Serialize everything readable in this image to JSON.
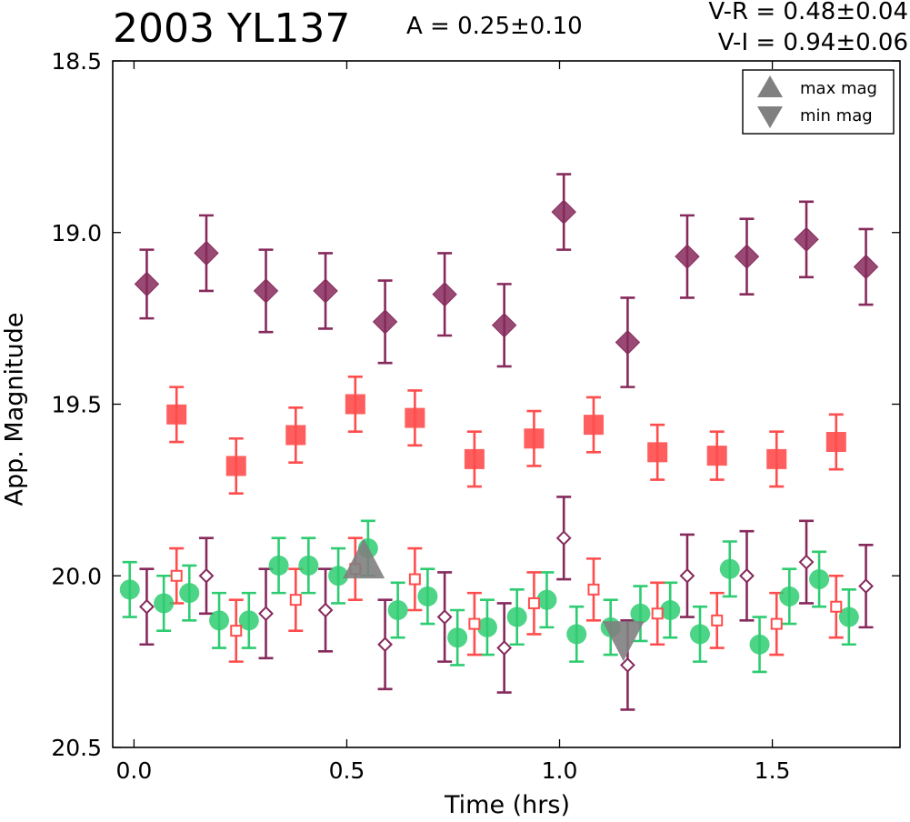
{
  "header": {
    "title": "2003 YL137",
    "amplitude": "A  = 0.25±0.10",
    "color_vr": "V-R = 0.48±0.04",
    "color_vi": "V-I  = 0.94±0.06"
  },
  "chart_data": {
    "type": "scatter",
    "xlabel": "Time (hrs)",
    "ylabel": "App. Magnitude",
    "xlim": [
      -0.05,
      1.8
    ],
    "ylim": [
      20.5,
      18.5
    ],
    "y_inverted": true,
    "xticks": [
      0.0,
      0.5,
      1.0,
      1.5
    ],
    "xtick_labels": [
      "0.0",
      "0.5",
      "1.0",
      "1.5"
    ],
    "yticks": [
      18.5,
      19.0,
      19.5,
      20.0,
      20.5
    ],
    "ytick_labels": [
      "18.5",
      "19.0",
      "19.5",
      "20.0",
      "20.5"
    ],
    "grid": false,
    "legend_position": "top-right",
    "legend": [
      {
        "label": "max mag",
        "marker": "triangle-up",
        "color": "#808080"
      },
      {
        "label": "min mag",
        "marker": "triangle-down",
        "color": "#808080"
      }
    ],
    "series": [
      {
        "marker": "diamond-filled",
        "color": "#862a5c",
        "x": [
          0.03,
          0.17,
          0.31,
          0.45,
          0.59,
          0.73,
          0.87,
          1.01,
          1.16,
          1.3,
          1.44,
          1.58,
          1.72
        ],
        "y": [
          19.15,
          19.06,
          19.17,
          19.17,
          19.26,
          19.18,
          19.27,
          18.94,
          19.32,
          19.07,
          19.07,
          19.02,
          19.1
        ],
        "err": [
          0.1,
          0.11,
          0.12,
          0.11,
          0.12,
          0.12,
          0.12,
          0.11,
          0.13,
          0.12,
          0.11,
          0.11,
          0.11
        ]
      },
      {
        "marker": "square-filled",
        "color": "#ff4d4d",
        "x": [
          0.1,
          0.24,
          0.38,
          0.52,
          0.66,
          0.8,
          0.94,
          1.08,
          1.23,
          1.37,
          1.51,
          1.65
        ],
        "y": [
          19.53,
          19.68,
          19.59,
          19.5,
          19.54,
          19.66,
          19.6,
          19.56,
          19.64,
          19.65,
          19.66,
          19.61
        ],
        "err": [
          0.08,
          0.08,
          0.08,
          0.08,
          0.08,
          0.08,
          0.08,
          0.08,
          0.08,
          0.07,
          0.08,
          0.08
        ]
      },
      {
        "marker": "circle-filled",
        "color": "#2ecc71",
        "x": [
          -0.01,
          0.07,
          0.13,
          0.2,
          0.27,
          0.34,
          0.41,
          0.48,
          0.55,
          0.62,
          0.69,
          0.76,
          0.83,
          0.9,
          0.97,
          1.04,
          1.12,
          1.19,
          1.26,
          1.33,
          1.4,
          1.47,
          1.54,
          1.61,
          1.68
        ],
        "y": [
          20.04,
          20.08,
          20.05,
          20.13,
          20.13,
          19.97,
          19.97,
          20.0,
          19.92,
          20.1,
          20.06,
          20.18,
          20.15,
          20.12,
          20.07,
          20.17,
          20.15,
          20.11,
          20.1,
          20.17,
          19.98,
          20.2,
          20.06,
          20.01,
          20.12
        ],
        "err": [
          0.08,
          0.08,
          0.08,
          0.08,
          0.08,
          0.08,
          0.08,
          0.08,
          0.08,
          0.08,
          0.08,
          0.08,
          0.08,
          0.08,
          0.08,
          0.08,
          0.08,
          0.08,
          0.08,
          0.08,
          0.08,
          0.08,
          0.08,
          0.08,
          0.08
        ]
      },
      {
        "marker": "square-open",
        "color": "#ff4d4d",
        "x": [
          0.1,
          0.24,
          0.38,
          0.52,
          0.66,
          0.8,
          0.94,
          1.08,
          1.23,
          1.37,
          1.51,
          1.65
        ],
        "y": [
          20.0,
          20.16,
          20.07,
          19.98,
          20.01,
          20.14,
          20.08,
          20.04,
          20.11,
          20.13,
          20.14,
          20.09
        ],
        "err": [
          0.08,
          0.09,
          0.09,
          0.09,
          0.09,
          0.09,
          0.09,
          0.09,
          0.09,
          0.08,
          0.09,
          0.09
        ]
      },
      {
        "marker": "diamond-open",
        "color": "#862a5c",
        "x": [
          0.03,
          0.17,
          0.31,
          0.45,
          0.59,
          0.73,
          0.87,
          1.01,
          1.16,
          1.3,
          1.44,
          1.58,
          1.72
        ],
        "y": [
          20.09,
          20.0,
          20.11,
          20.1,
          20.2,
          20.12,
          20.21,
          19.89,
          20.26,
          20.0,
          20.0,
          19.96,
          20.03
        ],
        "err": [
          0.11,
          0.11,
          0.13,
          0.12,
          0.13,
          0.13,
          0.13,
          0.12,
          0.13,
          0.12,
          0.13,
          0.12,
          0.12
        ]
      }
    ],
    "extrema_markers": [
      {
        "kind": "max",
        "marker": "triangle-up",
        "x": 0.54,
        "y": 19.96,
        "color": "#808080"
      },
      {
        "kind": "min",
        "marker": "triangle-down",
        "x": 1.15,
        "y": 20.18,
        "color": "#808080"
      }
    ]
  }
}
